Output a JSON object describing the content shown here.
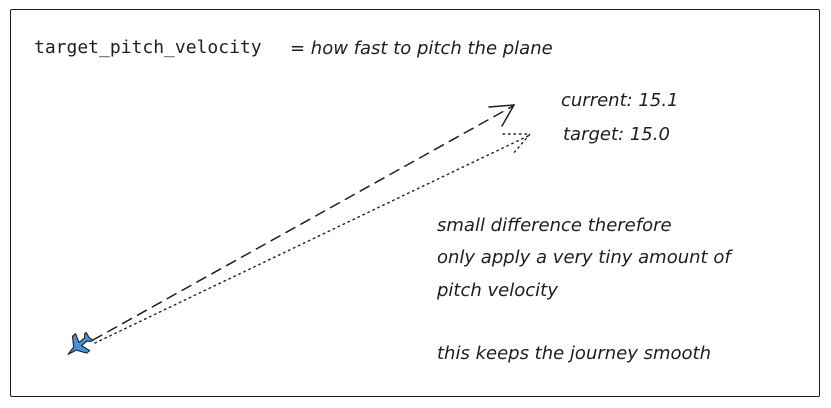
{
  "heading": {
    "variable": "target_pitch_velocity",
    "definition": "= how fast to pitch the plane"
  },
  "labels": {
    "current": "current: 15.1",
    "target": "target: 15.0"
  },
  "note": {
    "line1": "small difference therefore",
    "line2": "only apply a very tiny amount of",
    "line3": "pitch velocity",
    "line4": "this keeps the journey smooth"
  },
  "icons": {
    "plane": "airplane-icon",
    "plane_color": "#4a90d9"
  },
  "colors": {
    "stroke": "#1e1e1e",
    "background": "#ffffff"
  }
}
